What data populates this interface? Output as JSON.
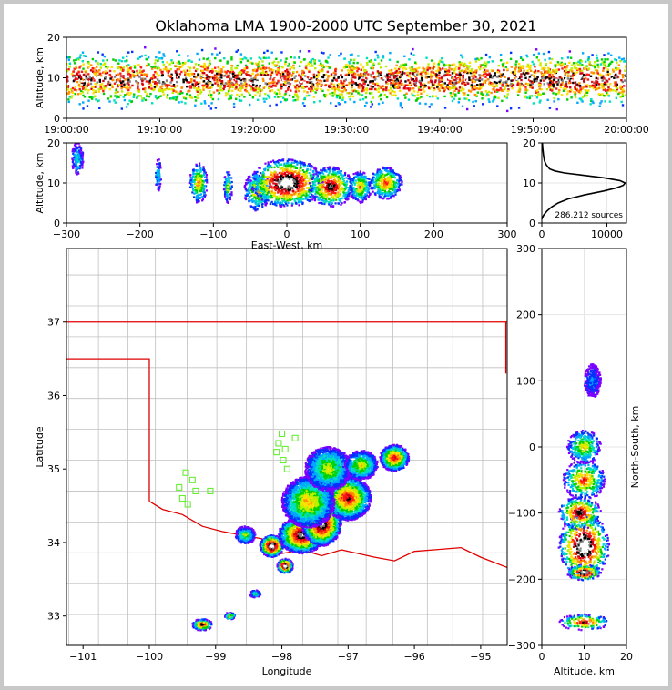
{
  "title": "Oklahoma LMA 1900-2000 UTC September 30, 2021",
  "colors": {
    "state_border": "#e00000",
    "county_lines": "#c0c0c0",
    "station": "#66ee33",
    "frame": "#c8c8c8"
  },
  "chart_data": [
    {
      "type": "heatmap",
      "panel": "time-altitude",
      "ylabel": "Altitude, km",
      "ylim": [
        0,
        20
      ],
      "yticks": [
        "0",
        "10",
        "20"
      ],
      "xticks": [
        "19:00:00",
        "19:10:00",
        "19:20:00",
        "19:30:00",
        "19:40:00",
        "19:50:00",
        "20:00:00"
      ],
      "xlim_minutes": [
        0,
        60
      ]
    },
    {
      "type": "heatmap",
      "panel": "east-west-altitude",
      "xlabel": "East-West, km",
      "ylabel": "Altitude, km",
      "xlim": [
        -300,
        300
      ],
      "ylim": [
        0,
        20
      ],
      "xticks": [
        "−300",
        "−200",
        "−100",
        "0",
        "100",
        "200",
        "300"
      ],
      "yticks": [
        "0",
        "10",
        "20"
      ],
      "blobs": [
        {
          "x": -120,
          "z": 10,
          "rx": 12,
          "rz": 5,
          "level": 0.55
        },
        {
          "x": -80,
          "z": 9,
          "rx": 6,
          "rz": 4,
          "level": 0.4
        },
        {
          "x": -40,
          "z": 8,
          "rx": 18,
          "rz": 5,
          "level": 0.5
        },
        {
          "x": 0,
          "z": 10,
          "rx": 50,
          "rz": 6,
          "level": 1.0
        },
        {
          "x": 60,
          "z": 9,
          "rx": 30,
          "rz": 5,
          "level": 0.8
        },
        {
          "x": 100,
          "z": 9,
          "rx": 15,
          "rz": 4,
          "level": 0.5
        },
        {
          "x": 135,
          "z": 10,
          "rx": 22,
          "rz": 4,
          "level": 0.6
        },
        {
          "x": -175,
          "z": 12,
          "rx": 4,
          "rz": 4,
          "level": 0.25
        },
        {
          "x": -285,
          "z": 16,
          "rx": 8,
          "rz": 4,
          "level": 0.2
        }
      ]
    },
    {
      "type": "line",
      "panel": "altitude-histogram",
      "annotation": "286,212 sources",
      "xlim": [
        0,
        13000
      ],
      "ylim": [
        0,
        20
      ],
      "xticks": [
        "0",
        "10000"
      ],
      "yticks": [
        "0",
        "10",
        "20"
      ],
      "series": [
        {
          "x": [
            0,
            300,
            800,
            1500,
            2500,
            4000,
            6500,
            9500,
            11500,
            12500,
            12800,
            12000,
            9500,
            6000,
            3500,
            2000,
            1200,
            700,
            400,
            250,
            150,
            80
          ],
          "y": [
            1,
            2,
            3,
            4,
            5,
            6,
            7,
            8,
            8.8,
            9.4,
            10,
            10.6,
            11.3,
            12,
            12.5,
            13,
            13.5,
            14.5,
            15.5,
            17,
            18.5,
            20
          ]
        }
      ]
    },
    {
      "type": "heatmap",
      "panel": "plan-view",
      "xlabel": "Longitude",
      "ylabel": "Latitude",
      "xlim": [
        -101.25,
        -94.6
      ],
      "ylim": [
        32.6,
        38
      ],
      "xticks": [
        {
          "v": -101,
          "t": "−101"
        },
        {
          "v": -100,
          "t": "−100"
        },
        {
          "v": -99,
          "t": "−99"
        },
        {
          "v": -98,
          "t": "−98"
        },
        {
          "v": -97,
          "t": "−97"
        },
        {
          "v": -96,
          "t": "−96"
        },
        {
          "v": -95,
          "t": "−95"
        }
      ],
      "yticks": [
        {
          "v": 33,
          "t": "33"
        },
        {
          "v": 34,
          "t": "34"
        },
        {
          "v": 35,
          "t": "35"
        },
        {
          "v": 36,
          "t": "36"
        },
        {
          "v": 37,
          "t": "37"
        }
      ],
      "stations": [
        [
          -99.45,
          34.95
        ],
        [
          -99.35,
          34.85
        ],
        [
          -99.55,
          34.75
        ],
        [
          -99.3,
          34.7
        ],
        [
          -99.5,
          34.6
        ],
        [
          -99.42,
          34.52
        ],
        [
          -99.08,
          34.7
        ],
        [
          -98.0,
          35.48
        ],
        [
          -98.05,
          35.35
        ],
        [
          -97.8,
          35.42
        ],
        [
          -97.95,
          35.27
        ],
        [
          -98.08,
          35.23
        ],
        [
          -97.98,
          35.12
        ],
        [
          -97.92,
          35.0
        ]
      ],
      "blobs": [
        {
          "lon": -98.15,
          "lat": 33.95,
          "rx": 0.18,
          "ry": 0.15,
          "level": 1.0
        },
        {
          "lon": -97.95,
          "lat": 33.68,
          "rx": 0.12,
          "ry": 0.1,
          "level": 1.0
        },
        {
          "lon": -97.7,
          "lat": 34.1,
          "rx": 0.35,
          "ry": 0.25,
          "level": 0.85
        },
        {
          "lon": -97.4,
          "lat": 34.25,
          "rx": 0.3,
          "ry": 0.3,
          "level": 0.9
        },
        {
          "lon": -97.0,
          "lat": 34.6,
          "rx": 0.35,
          "ry": 0.3,
          "level": 0.7
        },
        {
          "lon": -97.6,
          "lat": 34.55,
          "rx": 0.4,
          "ry": 0.35,
          "level": 0.5
        },
        {
          "lon": -97.3,
          "lat": 35.0,
          "rx": 0.35,
          "ry": 0.3,
          "level": 0.4
        },
        {
          "lon": -96.8,
          "lat": 35.05,
          "rx": 0.25,
          "ry": 0.2,
          "level": 0.45
        },
        {
          "lon": -96.3,
          "lat": 35.15,
          "rx": 0.22,
          "ry": 0.18,
          "level": 0.7
        },
        {
          "lon": -98.55,
          "lat": 34.1,
          "rx": 0.15,
          "ry": 0.12,
          "level": 0.35
        },
        {
          "lon": -99.2,
          "lat": 32.88,
          "rx": 0.15,
          "ry": 0.08,
          "level": 0.75
        },
        {
          "lon": -98.78,
          "lat": 33.0,
          "rx": 0.08,
          "ry": 0.05,
          "level": 0.5
        },
        {
          "lon": -98.4,
          "lat": 33.3,
          "rx": 0.08,
          "ry": 0.05,
          "level": 0.3
        }
      ]
    },
    {
      "type": "heatmap",
      "panel": "north-south-altitude",
      "xlabel": "Altitude, km",
      "ylabel": "North-South, km",
      "xlim": [
        0,
        20
      ],
      "ylim": [
        -300,
        300
      ],
      "xticks": [
        "0",
        "10",
        "20"
      ],
      "yticks": [
        {
          "v": -300,
          "t": "−300"
        },
        {
          "v": -200,
          "t": "−200"
        },
        {
          "v": -100,
          "t": "−100"
        },
        {
          "v": 0,
          "t": "0"
        },
        {
          "v": 100,
          "t": "100"
        },
        {
          "v": 200,
          "t": "200"
        },
        {
          "v": 300,
          "t": "300"
        }
      ],
      "blobs": [
        {
          "z": 10,
          "y": -150,
          "rz": 6,
          "ry": 50,
          "level": 1.0
        },
        {
          "z": 10,
          "y": -190,
          "rz": 4,
          "ry": 12,
          "level": 0.95
        },
        {
          "z": 9,
          "y": -100,
          "rz": 5,
          "ry": 25,
          "level": 0.8
        },
        {
          "z": 10,
          "y": -50,
          "rz": 5,
          "ry": 30,
          "level": 0.6
        },
        {
          "z": 10,
          "y": 0,
          "rz": 4,
          "ry": 25,
          "level": 0.45
        },
        {
          "z": 10,
          "y": -265,
          "rz": 6,
          "ry": 12,
          "level": 0.7
        },
        {
          "z": 12,
          "y": 100,
          "rz": 2,
          "ry": 25,
          "level": 0.12
        }
      ]
    }
  ]
}
